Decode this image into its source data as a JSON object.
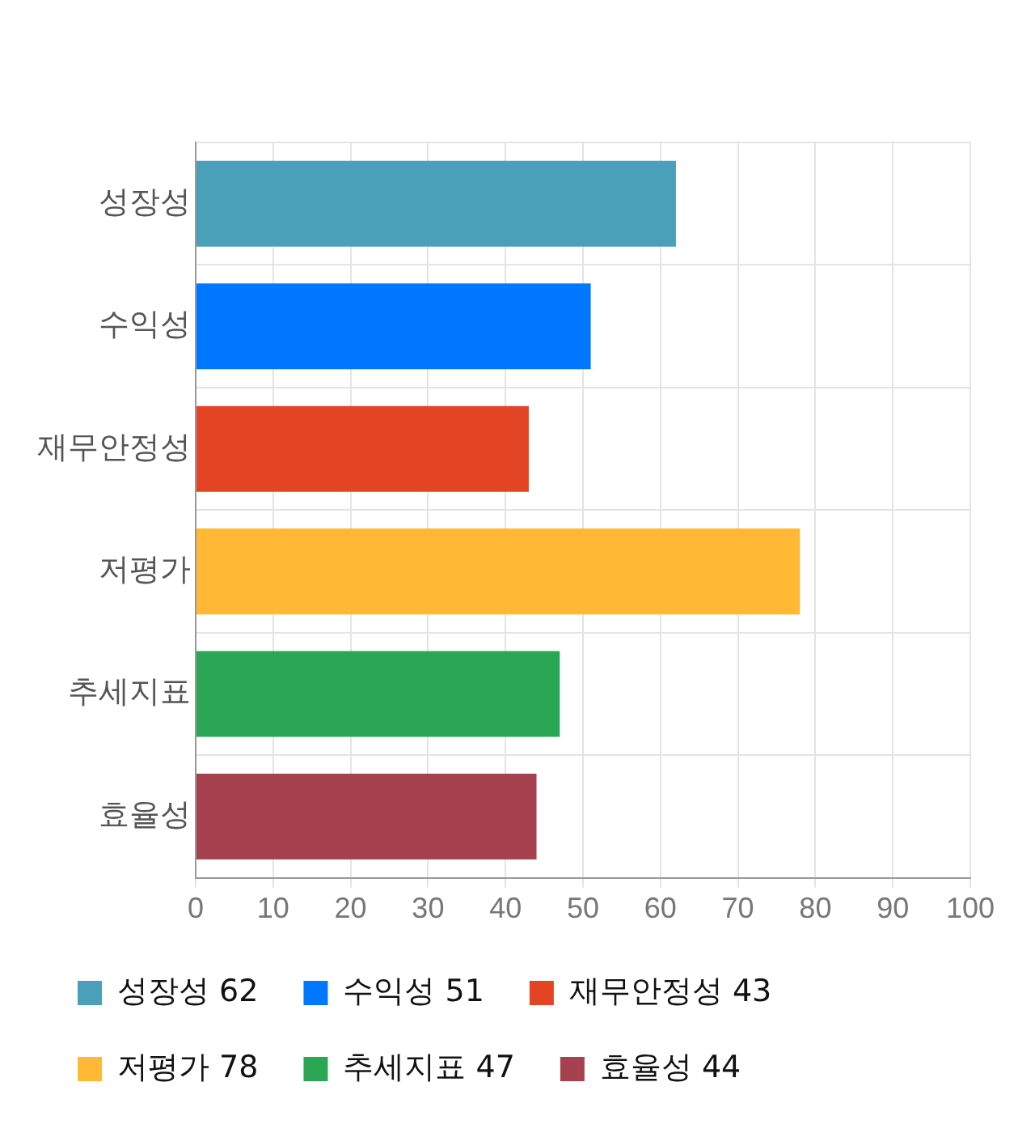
{
  "chart_data": {
    "type": "bar",
    "orientation": "horizontal",
    "categories": [
      "성장성",
      "수익성",
      "재무안정성",
      "저평가",
      "추세지표",
      "효율성"
    ],
    "series": [
      {
        "name": "성장성 62",
        "color": "#4aa0b9",
        "values": [
          62,
          null,
          null,
          null,
          null,
          null
        ]
      },
      {
        "name": "수익성 51",
        "color": "#0077ff",
        "values": [
          null,
          51,
          null,
          null,
          null,
          null
        ]
      },
      {
        "name": "재무안정성 43",
        "color": "#e24424",
        "values": [
          null,
          null,
          43,
          null,
          null,
          null
        ]
      },
      {
        "name": "저평가 78",
        "color": "#ffb934",
        "values": [
          null,
          null,
          null,
          78,
          null,
          null
        ]
      },
      {
        "name": "추세지표 47",
        "color": "#2aa654",
        "values": [
          null,
          null,
          null,
          null,
          47,
          null
        ]
      },
      {
        "name": "효율성 44",
        "color": "#a6424f",
        "values": [
          null,
          null,
          null,
          null,
          null,
          44
        ]
      }
    ],
    "xlim": [
      0,
      100
    ],
    "xticks": [
      0,
      10,
      20,
      30,
      40,
      50,
      60,
      70,
      80,
      90,
      100
    ],
    "grid": true,
    "legend": "bottom"
  }
}
